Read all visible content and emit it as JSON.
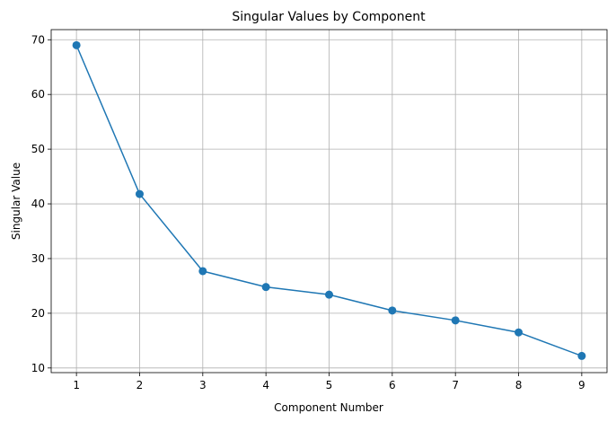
{
  "chart_data": {
    "type": "line",
    "title": "Singular Values by Component",
    "xlabel": "Component Number",
    "ylabel": "Singular Value",
    "x": [
      1,
      2,
      3,
      4,
      5,
      6,
      7,
      8,
      9
    ],
    "series": [
      {
        "values": [
          69.0,
          41.8,
          27.7,
          24.8,
          23.4,
          20.5,
          18.7,
          16.5,
          12.2
        ],
        "color": "#1f77b4",
        "marker": "circle"
      }
    ],
    "xticks": [
      1,
      2,
      3,
      4,
      5,
      6,
      7,
      8,
      9
    ],
    "yticks": [
      10,
      20,
      30,
      40,
      50,
      60,
      70
    ],
    "xlim": [
      0.6,
      9.4
    ],
    "ylim": [
      9.15,
      71.85
    ],
    "grid": true
  }
}
